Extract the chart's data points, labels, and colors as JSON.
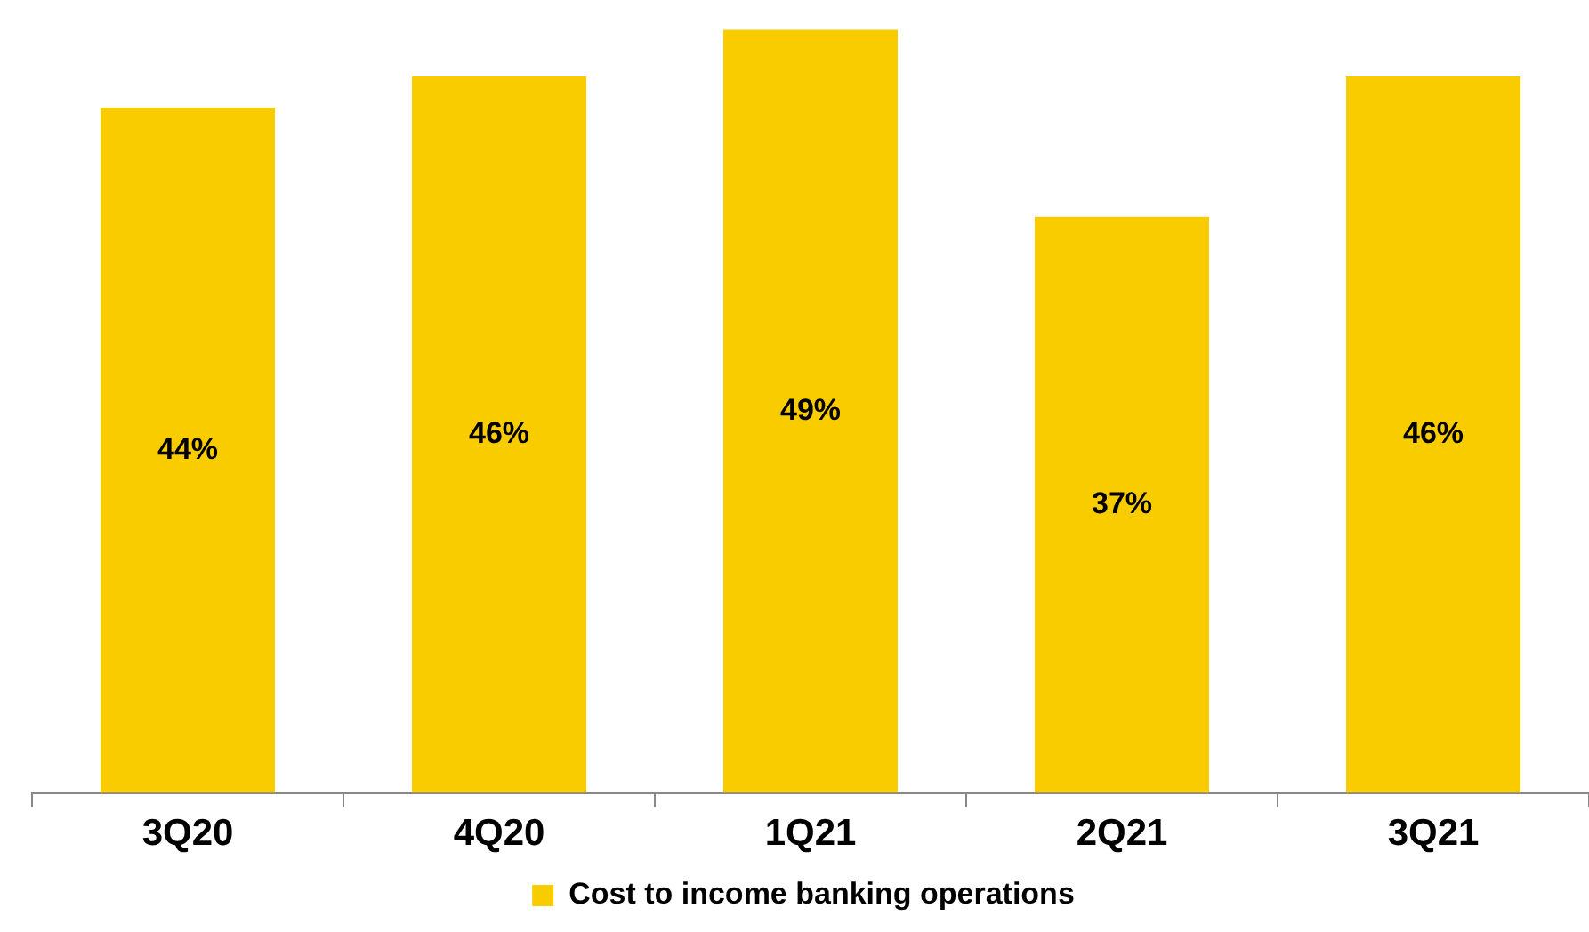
{
  "chart_data": {
    "type": "bar",
    "categories": [
      "3Q20",
      "4Q20",
      "1Q21",
      "2Q21",
      "3Q21"
    ],
    "series": [
      {
        "name": "Cost to income banking operations",
        "color": "#f9cc00",
        "values": [
          44,
          46,
          49,
          37,
          46
        ],
        "value_labels": [
          "44%",
          "46%",
          "49%",
          "37%",
          "46%"
        ]
      }
    ],
    "legend": "bottom"
  }
}
